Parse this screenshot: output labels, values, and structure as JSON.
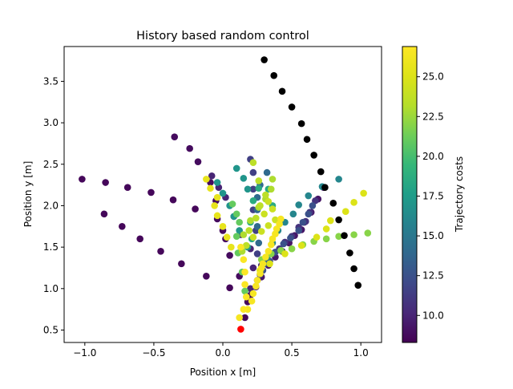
{
  "chart_data": {
    "type": "scatter",
    "title": "History based random control",
    "xlabel": "Position x [m]",
    "ylabel": "Position y [m]",
    "xlim": [
      -1.15,
      1.15
    ],
    "ylim": [
      0.35,
      3.92
    ],
    "xticks": [
      {
        "value": -1.0,
        "label": "−1.0"
      },
      {
        "value": -0.5,
        "label": "−0.5"
      },
      {
        "value": 0.0,
        "label": "0.0"
      },
      {
        "value": 0.5,
        "label": "0.5"
      },
      {
        "value": 1.0,
        "label": "1.0"
      }
    ],
    "yticks": [
      {
        "value": 0.5,
        "label": "0.5"
      },
      {
        "value": 1.0,
        "label": "1.0"
      },
      {
        "value": 1.5,
        "label": "1.5"
      },
      {
        "value": 2.0,
        "label": "2.0"
      },
      {
        "value": 2.5,
        "label": "2.5"
      },
      {
        "value": 3.0,
        "label": "3.0"
      },
      {
        "value": 3.5,
        "label": "3.5"
      }
    ],
    "grid": false,
    "start_point": {
      "x": 0.13,
      "y": 0.51,
      "color": "#ff0000"
    },
    "best_trajectory": {
      "color": "#000000",
      "points": [
        [
          0.98,
          1.04
        ],
        [
          0.95,
          1.24
        ],
        [
          0.92,
          1.43
        ],
        [
          0.88,
          1.64
        ],
        [
          0.84,
          1.83
        ],
        [
          0.8,
          2.03
        ],
        [
          0.74,
          2.22
        ],
        [
          0.71,
          2.41
        ],
        [
          0.66,
          2.61
        ],
        [
          0.61,
          2.8
        ],
        [
          0.57,
          2.99
        ],
        [
          0.5,
          3.19
        ],
        [
          0.43,
          3.38
        ],
        [
          0.37,
          3.57
        ],
        [
          0.3,
          3.76
        ]
      ]
    },
    "colorbar": {
      "label": "Trajectory costs",
      "colormap": "viridis",
      "range": [
        8.3,
        26.9
      ],
      "ticks": [
        10.0,
        12.5,
        15.0,
        17.5,
        20.0,
        22.5,
        25.0
      ],
      "tick_labels": [
        "10.0",
        "12.5",
        "15.0",
        "17.5",
        "20.0",
        "22.5",
        "25.0"
      ]
    },
    "trajectories": [
      {
        "cost": 8.6,
        "points": [
          [
            0.16,
            0.65
          ],
          [
            0.18,
            0.84
          ],
          [
            0.05,
            1.01
          ],
          [
            -0.12,
            1.15
          ],
          [
            -0.3,
            1.3
          ],
          [
            -0.45,
            1.45
          ],
          [
            -0.6,
            1.6
          ],
          [
            -0.73,
            1.75
          ],
          [
            -0.86,
            1.9
          ],
          [
            -1.02,
            2.32
          ],
          [
            -0.85,
            2.28
          ],
          [
            -0.69,
            2.22
          ],
          [
            -0.52,
            2.16
          ],
          [
            -0.36,
            2.07
          ],
          [
            -0.2,
            1.96
          ]
        ]
      },
      {
        "cost": 8.8,
        "points": [
          [
            0.2,
            0.92
          ],
          [
            0.12,
            1.15
          ],
          [
            0.05,
            1.4
          ],
          [
            0.02,
            1.6
          ],
          [
            0.0,
            1.7
          ],
          [
            -0.04,
            1.84
          ],
          [
            -0.05,
            2.06
          ],
          [
            -0.09,
            2.28
          ],
          [
            -0.18,
            2.53
          ],
          [
            -0.24,
            2.69
          ],
          [
            -0.35,
            2.83
          ]
        ]
      },
      {
        "cost": 9.3,
        "points": [
          [
            0.24,
            1.02
          ],
          [
            0.28,
            1.14
          ],
          [
            0.33,
            1.28
          ],
          [
            0.38,
            1.38
          ],
          [
            0.43,
            1.45
          ],
          [
            0.48,
            1.55
          ],
          [
            0.52,
            1.64
          ],
          [
            0.57,
            1.71
          ],
          [
            0.59,
            1.8
          ],
          [
            0.64,
            1.92
          ],
          [
            0.69,
            2.08
          ],
          [
            0.73,
            2.22
          ]
        ]
      },
      {
        "cost": 10.0,
        "points": [
          [
            0.2,
            1.0
          ],
          [
            0.22,
            1.25
          ],
          [
            0.2,
            1.48
          ],
          [
            0.13,
            1.65
          ],
          [
            0.08,
            1.87
          ],
          [
            0.02,
            2.1
          ],
          [
            -0.03,
            2.22
          ],
          [
            -0.08,
            2.36
          ]
        ]
      },
      {
        "cost": 10.8,
        "points": [
          [
            0.25,
            1.1
          ],
          [
            0.28,
            1.28
          ],
          [
            0.33,
            1.34
          ],
          [
            0.36,
            1.42
          ],
          [
            0.41,
            1.48
          ],
          [
            0.45,
            1.56
          ],
          [
            0.5,
            1.63
          ],
          [
            0.55,
            1.74
          ],
          [
            0.6,
            1.81
          ],
          [
            0.63,
            1.92
          ],
          [
            0.67,
            2.06
          ]
        ]
      },
      {
        "cost": 11.5,
        "points": [
          [
            0.27,
            1.17
          ],
          [
            0.25,
            1.42
          ],
          [
            0.24,
            1.7
          ],
          [
            0.22,
            1.95
          ],
          [
            0.22,
            2.2
          ],
          [
            0.22,
            2.4
          ],
          [
            0.2,
            2.56
          ]
        ]
      },
      {
        "cost": 12.5,
        "points": [
          [
            0.29,
            1.22
          ],
          [
            0.34,
            1.33
          ],
          [
            0.38,
            1.44
          ],
          [
            0.44,
            1.54
          ],
          [
            0.49,
            1.61
          ],
          [
            0.55,
            1.7
          ],
          [
            0.58,
            1.8
          ],
          [
            0.62,
            1.9
          ],
          [
            0.65,
            2.0
          ]
        ]
      },
      {
        "cost": 14.0,
        "points": [
          [
            0.3,
            1.3
          ],
          [
            0.26,
            1.55
          ],
          [
            0.25,
            1.75
          ],
          [
            0.25,
            1.95
          ],
          [
            0.25,
            2.1
          ],
          [
            0.27,
            2.25
          ],
          [
            0.32,
            2.4
          ]
        ]
      },
      {
        "cost": 16.0,
        "points": [
          [
            0.32,
            1.38
          ],
          [
            0.36,
            1.55
          ],
          [
            0.4,
            1.7
          ],
          [
            0.45,
            1.8
          ],
          [
            0.51,
            1.9
          ],
          [
            0.55,
            2.01
          ],
          [
            0.62,
            2.12
          ],
          [
            0.72,
            2.23
          ],
          [
            0.84,
            2.32
          ]
        ]
      },
      {
        "cost": 17.0,
        "points": [
          [
            0.18,
            1.5
          ],
          [
            0.12,
            1.7
          ],
          [
            0.08,
            1.87
          ],
          [
            0.05,
            2.0
          ],
          [
            0.0,
            2.15
          ],
          [
            -0.04,
            2.28
          ],
          [
            0.1,
            2.45
          ],
          [
            0.15,
            2.33
          ],
          [
            0.18,
            2.2
          ]
        ]
      },
      {
        "cost": 18.5,
        "points": [
          [
            0.21,
            1.6
          ],
          [
            0.2,
            1.8
          ],
          [
            0.22,
            2.06
          ],
          [
            0.26,
            2.21
          ],
          [
            0.33,
            2.2
          ],
          [
            0.36,
            2.0
          ]
        ]
      },
      {
        "cost": 21.0,
        "points": [
          [
            0.16,
            0.97
          ],
          [
            0.14,
            1.2
          ],
          [
            0.11,
            1.43
          ],
          [
            0.1,
            1.63
          ],
          [
            0.12,
            1.8
          ],
          [
            0.1,
            1.9
          ],
          [
            0.07,
            2.02
          ]
        ]
      },
      {
        "cost": 22.0,
        "points": [
          [
            0.28,
            1.35
          ],
          [
            0.35,
            1.42
          ],
          [
            0.42,
            1.46
          ],
          [
            0.5,
            1.48
          ],
          [
            0.58,
            1.53
          ],
          [
            0.66,
            1.57
          ],
          [
            0.75,
            1.6
          ],
          [
            0.84,
            1.63
          ],
          [
            0.95,
            1.65
          ],
          [
            1.05,
            1.67
          ]
        ]
      },
      {
        "cost": 23.0,
        "points": [
          [
            0.14,
            1.45
          ],
          [
            0.15,
            1.65
          ],
          [
            0.2,
            1.82
          ],
          [
            0.26,
            1.98
          ],
          [
            0.31,
            2.08
          ],
          [
            0.35,
            2.2
          ],
          [
            0.36,
            2.32
          ]
        ]
      },
      {
        "cost": 23.5,
        "points": [
          [
            0.17,
            1.52
          ],
          [
            0.19,
            1.7
          ],
          [
            0.24,
            1.85
          ],
          [
            0.27,
            2.0
          ],
          [
            0.31,
            2.13
          ],
          [
            0.26,
            2.3
          ],
          [
            0.22,
            2.52
          ]
        ]
      },
      {
        "cost": 24.2,
        "points": [
          [
            0.22,
            1.62
          ],
          [
            0.28,
            1.69
          ],
          [
            0.33,
            1.76
          ],
          [
            0.38,
            1.83
          ],
          [
            0.3,
            1.9
          ],
          [
            0.36,
            1.96
          ],
          [
            0.33,
            2.05
          ]
        ]
      },
      {
        "cost": 25.0,
        "points": [
          [
            0.27,
            1.22
          ],
          [
            0.34,
            1.3
          ],
          [
            0.45,
            1.42
          ],
          [
            0.57,
            1.52
          ],
          [
            0.68,
            1.62
          ],
          [
            0.75,
            1.72
          ],
          [
            0.78,
            1.82
          ],
          [
            0.89,
            1.93
          ],
          [
            0.95,
            2.04
          ],
          [
            1.02,
            2.15
          ]
        ]
      },
      {
        "cost": 25.6,
        "points": [
          [
            0.06,
            1.5
          ],
          [
            0.03,
            1.62
          ],
          [
            0.0,
            1.75
          ],
          [
            -0.04,
            1.88
          ],
          [
            -0.06,
            2.0
          ],
          [
            -0.04,
            2.1
          ],
          [
            -0.09,
            2.21
          ],
          [
            -0.12,
            2.32
          ]
        ]
      },
      {
        "cost": 26.5,
        "points": [
          [
            0.12,
            0.65
          ],
          [
            0.18,
            0.75
          ],
          [
            0.21,
            0.85
          ],
          [
            0.22,
            0.94
          ],
          [
            0.24,
            1.03
          ],
          [
            0.25,
            1.1
          ],
          [
            0.27,
            1.18
          ],
          [
            0.28,
            1.25
          ],
          [
            0.29,
            1.3
          ],
          [
            0.31,
            1.38
          ],
          [
            0.33,
            1.45
          ],
          [
            0.35,
            1.53
          ],
          [
            0.36,
            1.6
          ],
          [
            0.38,
            1.66
          ],
          [
            0.39,
            1.72
          ],
          [
            0.41,
            1.78
          ],
          [
            0.42,
            1.84
          ]
        ]
      },
      {
        "cost": 26.7,
        "points": [
          [
            0.15,
            0.75
          ],
          [
            0.17,
            0.9
          ],
          [
            0.16,
            1.05
          ],
          [
            0.16,
            1.2
          ],
          [
            0.15,
            1.35
          ],
          [
            0.13,
            1.5
          ]
        ]
      }
    ]
  }
}
